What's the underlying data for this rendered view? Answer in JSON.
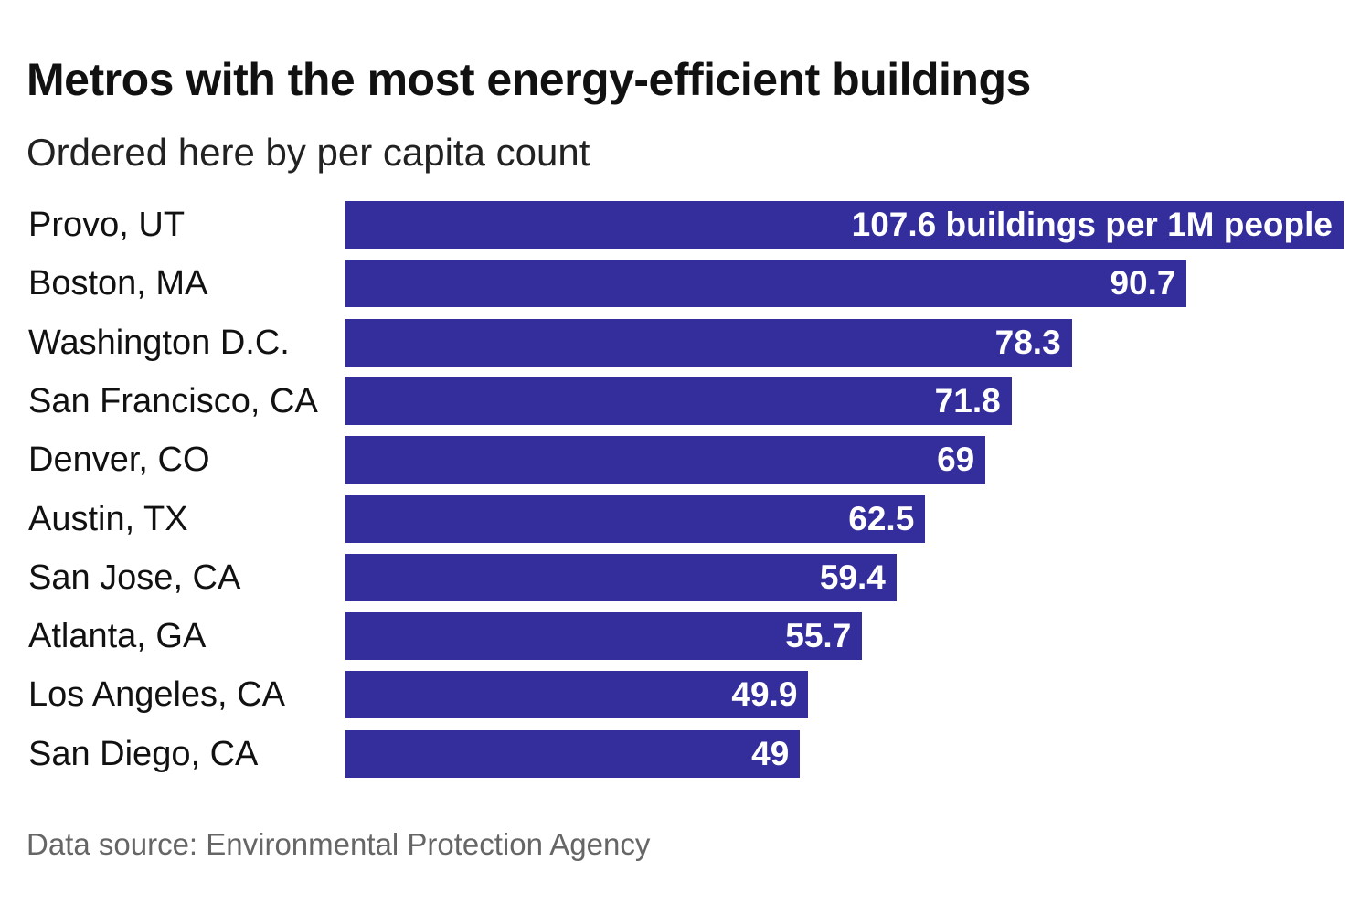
{
  "chart_data": {
    "type": "bar",
    "orientation": "horizontal",
    "title": "Metros with the most energy-efficient buildings",
    "subtitle": "Ordered here by per capita count",
    "source": "Data source: Environmental Protection Agency",
    "categories": [
      "Provo, UT",
      "Boston, MA",
      "Washington D.C.",
      "San Francisco, CA",
      "Denver, CO",
      "Austin, TX",
      "San Jose, CA",
      "Atlanta, GA",
      "Los Angeles, CA",
      "San Diego, CA"
    ],
    "values": [
      107.6,
      90.7,
      78.3,
      71.8,
      69,
      62.5,
      59.4,
      55.7,
      49.9,
      49
    ],
    "data_labels": [
      "107.6 buildings per 1M people",
      "90.7",
      "78.3",
      "71.8",
      "69",
      "62.5",
      "59.4",
      "55.7",
      "49.9",
      "49"
    ],
    "bar_color": "#332e9c",
    "xlim": [
      0,
      107.6
    ],
    "grid": false,
    "axes_visible": false
  }
}
